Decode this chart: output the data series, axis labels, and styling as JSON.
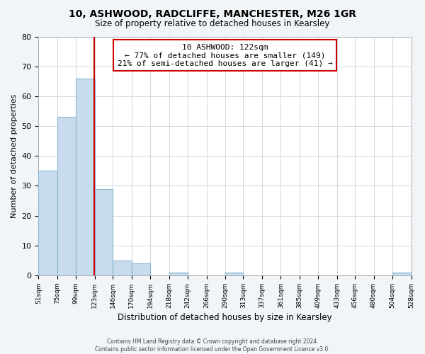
{
  "title": "10, ASHWOOD, RADCLIFFE, MANCHESTER, M26 1GR",
  "subtitle": "Size of property relative to detached houses in Kearsley",
  "xlabel": "Distribution of detached houses by size in Kearsley",
  "ylabel": "Number of detached properties",
  "bin_edges": [
    51,
    75,
    99,
    123,
    146,
    170,
    194,
    218,
    242,
    266,
    290,
    313,
    337,
    361,
    385,
    409,
    433,
    456,
    480,
    504,
    528
  ],
  "bar_heights": [
    35,
    53,
    66,
    29,
    5,
    4,
    0,
    1,
    0,
    0,
    1,
    0,
    0,
    0,
    0,
    0,
    0,
    0,
    0,
    1
  ],
  "bar_color": "#c8dced",
  "bar_edge_color": "#8ab4cf",
  "property_value": 122,
  "vline_color": "#cc0000",
  "annotation_title": "10 ASHWOOD: 122sqm",
  "annotation_line1": "← 77% of detached houses are smaller (149)",
  "annotation_line2": "21% of semi-detached houses are larger (41) →",
  "annotation_box_color": "#ffffff",
  "annotation_box_edge": "#cc0000",
  "ylim": [
    0,
    80
  ],
  "yticks": [
    0,
    10,
    20,
    30,
    40,
    50,
    60,
    70,
    80
  ],
  "tick_labels": [
    "51sqm",
    "75sqm",
    "99sqm",
    "123sqm",
    "146sqm",
    "170sqm",
    "194sqm",
    "218sqm",
    "242sqm",
    "266sqm",
    "290sqm",
    "313sqm",
    "337sqm",
    "361sqm",
    "385sqm",
    "409sqm",
    "433sqm",
    "456sqm",
    "480sqm",
    "504sqm",
    "528sqm"
  ],
  "footer_line1": "Contains HM Land Registry data © Crown copyright and database right 2024.",
  "footer_line2": "Contains public sector information licensed under the Open Government Licence v3.0.",
  "background_color": "#f2f5f8",
  "plot_bg_color": "#ffffff",
  "grid_color": "#d0d8e0"
}
